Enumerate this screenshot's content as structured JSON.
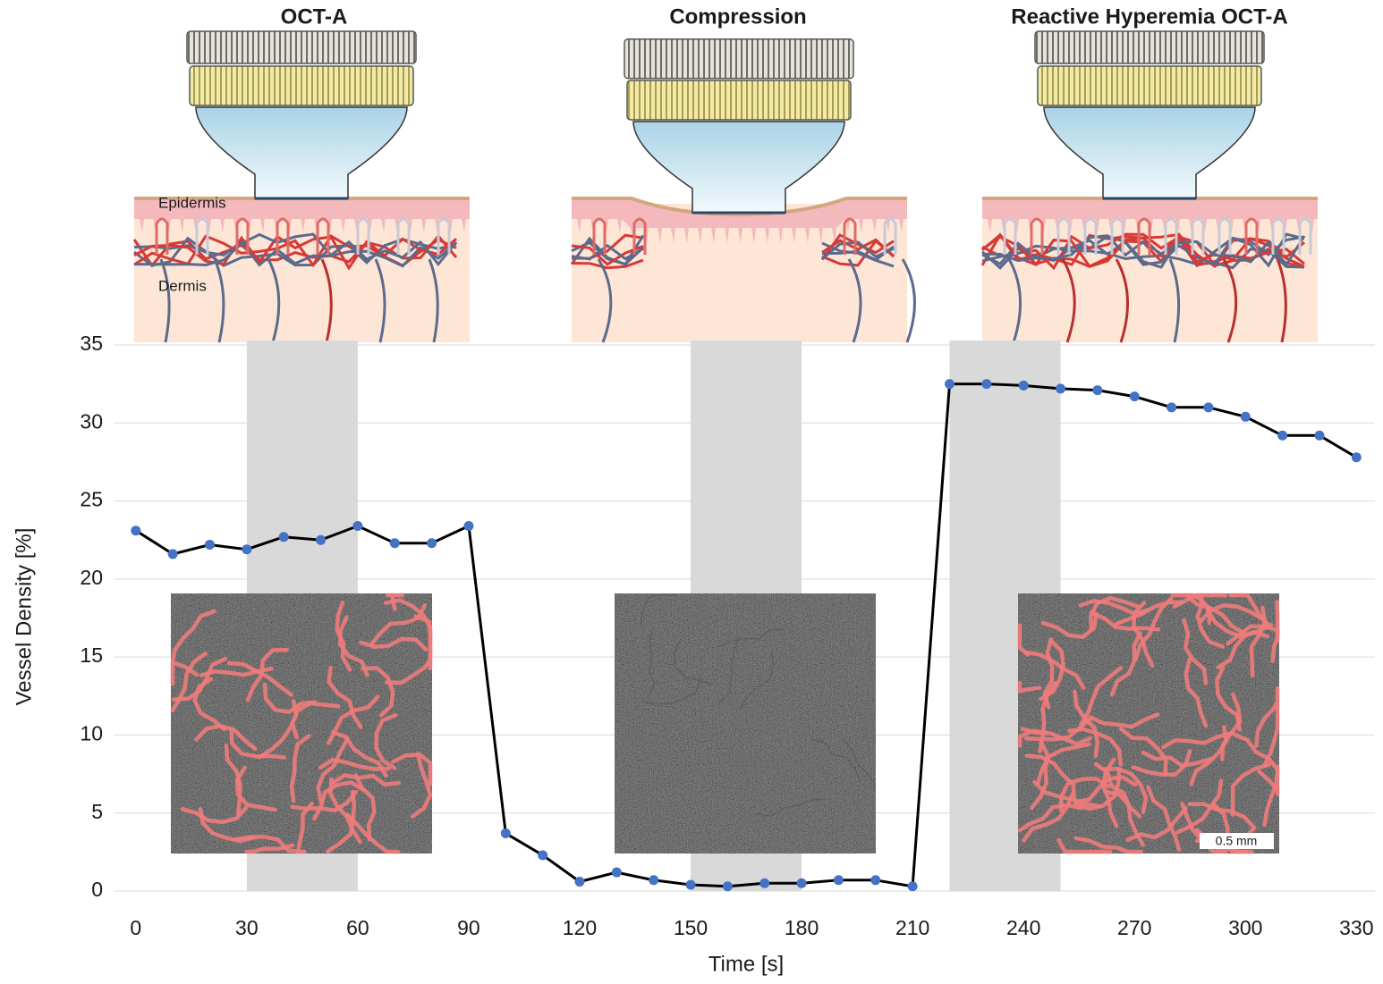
{
  "chart_data": {
    "type": "line",
    "panel_titles": [
      "OCT-A",
      "Compression",
      "Reactive Hyperemia OCT-A"
    ],
    "illustration_labels": [
      "Epidermis",
      "Dermis"
    ],
    "scale_bar_label": "0.5 mm",
    "x_label": "Time [s]",
    "y_label": "Vessel Density [%]",
    "x": [
      0,
      10,
      20,
      30,
      40,
      50,
      60,
      70,
      80,
      90,
      100,
      110,
      120,
      130,
      140,
      150,
      160,
      170,
      180,
      190,
      200,
      210,
      220,
      230,
      240,
      250,
      260,
      270,
      280,
      290,
      300,
      310,
      320,
      330
    ],
    "series": [
      {
        "color": "#000000",
        "marker_color": "#4472c4",
        "values": [
          23.1,
          21.6,
          22.2,
          21.9,
          22.7,
          22.5,
          23.4,
          22.3,
          22.3,
          23.4,
          3.7,
          2.3,
          0.6,
          1.2,
          0.7,
          0.4,
          0.3,
          0.5,
          0.5,
          0.7,
          0.7,
          0.3,
          32.5,
          32.5,
          32.4,
          32.2,
          32.1,
          31.7,
          31.0,
          31.0,
          30.4,
          29.2,
          29.2,
          27.8
        ]
      }
    ],
    "xlim": [
      -6,
      335
    ],
    "ylim": [
      0,
      35
    ],
    "xticks": [
      0,
      30,
      60,
      90,
      120,
      150,
      180,
      210,
      240,
      270,
      300,
      330
    ],
    "yticks": [
      0,
      5,
      10,
      15,
      20,
      25,
      30,
      35
    ],
    "grid": true,
    "shaded_x_ranges": [
      [
        30,
        60
      ],
      [
        150,
        180
      ],
      [
        220,
        250
      ]
    ],
    "shade_color": "#d9d9d9"
  }
}
